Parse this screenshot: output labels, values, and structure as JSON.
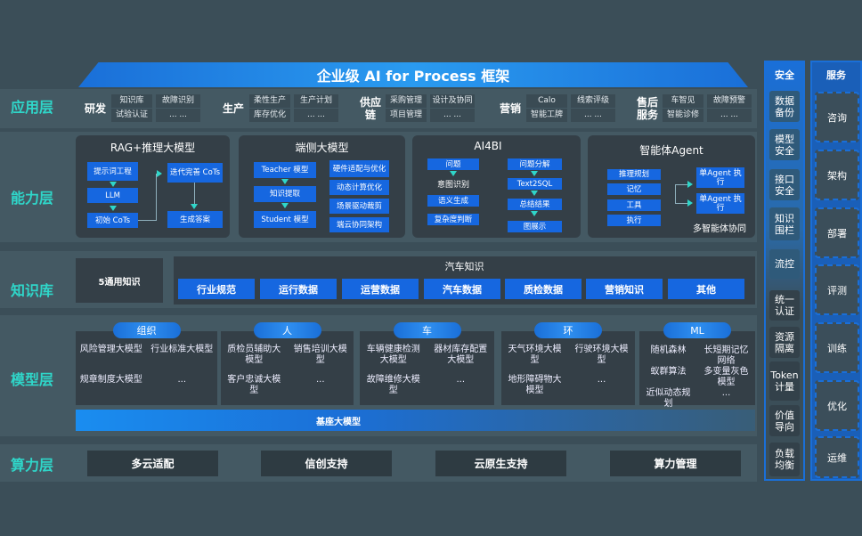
{
  "title": "企业级 AI for Process 框架",
  "layers": {
    "app": "应用层",
    "capability": "能力层",
    "knowledge": "知识库",
    "model": "模型层",
    "compute": "算力层"
  },
  "app_groups": [
    {
      "label": "研发",
      "items": [
        "知识库",
        "故障识别",
        "试验认证",
        "... ..."
      ]
    },
    {
      "label": "生产",
      "items": [
        "柔性生产",
        "生产计划",
        "库存优化",
        "... ..."
      ]
    },
    {
      "label": "供应链",
      "items": [
        "采购管理",
        "设计及协同",
        "项目管理",
        "... ..."
      ]
    },
    {
      "label": "营销",
      "items": [
        "Calo",
        "线索评级",
        "智能工牌",
        "... ..."
      ]
    },
    {
      "label": "售后服务",
      "items": [
        "车智见",
        "故障预警",
        "智能诊修",
        "... ..."
      ]
    }
  ],
  "capability": {
    "rag": {
      "title": "RAG+推理大模型",
      "items": [
        "提示词工程",
        "LLM",
        "初始 CoTs",
        "迭代完善 CoTs",
        "生成答案"
      ]
    },
    "edge": {
      "title": "端侧大模型",
      "items": [
        "Teacher 模型",
        "知识提取",
        "Student 模型",
        "硬件适配与优化",
        "动态计算优化",
        "场景驱动裁剪",
        "端云协同架构"
      ]
    },
    "ai4bi": {
      "title": "AI4BI",
      "items": [
        "问题",
        "意图识别",
        "语义生成",
        "复杂度判断",
        "问题分解",
        "Text2SQL",
        "总结结果",
        "图展示"
      ]
    },
    "agent": {
      "title": "智能体Agent",
      "items": [
        "推理规划",
        "记忆",
        "工具",
        "执行",
        "单Agent 执行",
        "单Agent 执行",
        "多智能体协同"
      ]
    }
  },
  "knowledge": {
    "general": "5通用知识",
    "auto_title": "汽车知识",
    "items": [
      "行业规范",
      "运行数据",
      "运营数据",
      "汽车数据",
      "质检数据",
      "营销知识",
      "其他"
    ]
  },
  "model": {
    "groups": [
      {
        "label": "组织",
        "items": [
          "风险管理大模型",
          "行业标准大模型",
          "规章制度大模型",
          "..."
        ]
      },
      {
        "label": "人",
        "items": [
          "质检员辅助大模型",
          "销售培训大模型",
          "客户忠诚大模型",
          "..."
        ]
      },
      {
        "label": "车",
        "items": [
          "车辆健康检测大模型",
          "器材库存配置大模型",
          "故障维修大模型",
          "..."
        ]
      },
      {
        "label": "环",
        "items": [
          "天气环境大模型",
          "行驶环境大模型",
          "地形障碍物大模型",
          "..."
        ]
      },
      {
        "label": "ML",
        "items": [
          "随机森林",
          "长短期记忆网络",
          "蚁群算法",
          "多变量灰色模型",
          "近似动态规划",
          "..."
        ]
      }
    ],
    "foundation": "基座大模型"
  },
  "compute": [
    "多云适配",
    "信创支持",
    "云原生支持",
    "算力管理"
  ],
  "security": {
    "title": "安全",
    "items": [
      "数据备份",
      "模型安全",
      "接口安全",
      "知识围栏",
      "流控",
      "统一认证",
      "资源隔离",
      "Token计量",
      "价值导向",
      "负载均衡"
    ]
  },
  "service": {
    "title": "服务",
    "items": [
      "咨询",
      "架构",
      "部署",
      "评测",
      "训练",
      "优化",
      "运维"
    ]
  },
  "colors": {
    "accent_blue": "#1667e0",
    "label_teal": "#2fd6c9",
    "background": "#3b4e58"
  }
}
